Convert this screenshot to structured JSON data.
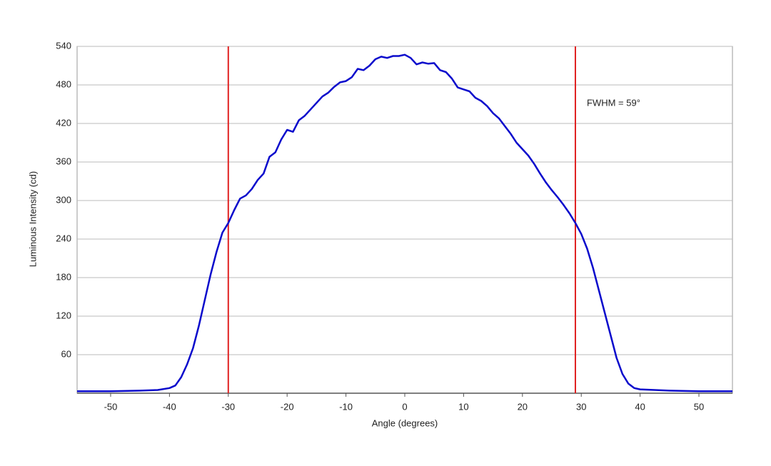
{
  "chart_data": {
    "type": "line",
    "xlabel": "Angle (degrees)",
    "ylabel": "Luminous Intensity (cd)",
    "annotation": "FWHM = 59°",
    "x": [
      -55.7,
      -50,
      -45,
      -42,
      -40,
      -39,
      -38,
      -37,
      -36,
      -35,
      -34,
      -33,
      -32,
      -31,
      -30,
      -29,
      -28,
      -27,
      -26,
      -25,
      -24,
      -23,
      -22,
      -21,
      -20,
      -19,
      -18,
      -17,
      -16,
      -15,
      -14,
      -13,
      -12,
      -11,
      -10,
      -9,
      -8,
      -7,
      -6,
      -5,
      -4,
      -3,
      -2,
      -1,
      0,
      1,
      2,
      3,
      4,
      5,
      6,
      7,
      8,
      9,
      10,
      11,
      12,
      13,
      14,
      15,
      16,
      17,
      18,
      19,
      20,
      21,
      22,
      23,
      24,
      25,
      26,
      27,
      28,
      29,
      30,
      31,
      32,
      33,
      34,
      35,
      36,
      37,
      38,
      39,
      40,
      45,
      50,
      55.7
    ],
    "values": [
      3,
      3,
      4,
      5,
      8,
      12,
      25,
      45,
      70,
      105,
      145,
      185,
      220,
      250,
      265,
      285,
      303,
      308,
      318,
      332,
      342,
      368,
      375,
      395,
      410,
      407,
      425,
      432,
      442,
      452,
      462,
      468,
      477,
      484,
      486,
      492,
      505,
      503,
      510,
      520,
      524,
      522,
      525,
      525,
      527,
      522,
      512,
      515,
      513,
      514,
      503,
      500,
      490,
      476,
      473,
      470,
      460,
      455,
      447,
      436,
      428,
      416,
      404,
      390,
      380,
      370,
      357,
      342,
      328,
      316,
      305,
      293,
      280,
      265,
      248,
      225,
      195,
      160,
      125,
      90,
      55,
      30,
      15,
      8,
      6,
      4,
      3,
      3
    ],
    "color": "#0a0acc",
    "reference_lines": [
      -30,
      29
    ],
    "reference_color": "#e02020",
    "xlim": [
      -55.7,
      55.7
    ],
    "ylim": [
      0,
      540
    ],
    "xticks": [
      -50,
      -40,
      -30,
      -20,
      -10,
      0,
      10,
      20,
      30,
      40,
      50
    ],
    "yticks": [
      60,
      120,
      180,
      240,
      300,
      360,
      420,
      480,
      540
    ],
    "grid": true
  }
}
